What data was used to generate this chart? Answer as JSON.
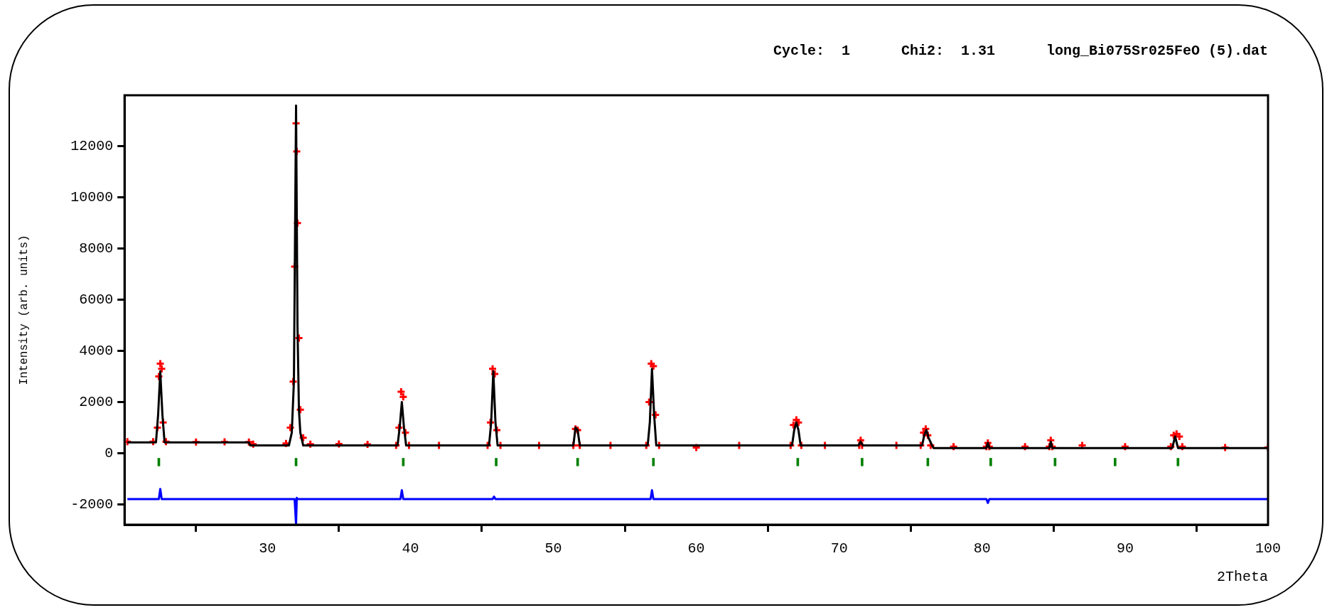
{
  "chart_data": {
    "type": "scatter",
    "title": "Cycle:  1      Chi2:  1.31      long_Bi075Sr025FeO (5).dat",
    "xlabel": "2Theta",
    "ylabel": "Intensity (arb. units)",
    "xlim": [
      20,
      100
    ],
    "xticks": [
      30,
      40,
      50,
      60,
      70,
      80,
      90,
      100
    ],
    "ylim": [
      -2800,
      14000
    ],
    "yticks": [
      -2000,
      0,
      2000,
      4000,
      6000,
      8000,
      10000,
      12000
    ],
    "grid": false,
    "legend": false,
    "series": [
      {
        "marker": "cross",
        "color": "#ff0000",
        "x": [
          20.2,
          22.0,
          22.3,
          22.4,
          22.5,
          22.6,
          22.7,
          22.9,
          25,
          27,
          28.7,
          29,
          31.3,
          31.6,
          31.8,
          31.9,
          32.0,
          32.05,
          32.1,
          32.2,
          32.3,
          32.5,
          33,
          35,
          37,
          39.0,
          39.2,
          39.35,
          39.5,
          39.65,
          39.9,
          42,
          45.4,
          45.6,
          45.75,
          45.9,
          46.05,
          46.3,
          49,
          51.4,
          51.55,
          51.7,
          51.85,
          54,
          56.5,
          56.7,
          56.85,
          57.0,
          57.15,
          57.4,
          60,
          63,
          66.6,
          66.8,
          67.0,
          67.15,
          67.35,
          69,
          71.4,
          71.5,
          71.6,
          74,
          75.7,
          75.9,
          76.05,
          76.2,
          76.4,
          78,
          80.3,
          80.4,
          80.5,
          83,
          84.7,
          84.8,
          84.9,
          87,
          90,
          93.2,
          93.4,
          93.6,
          93.8,
          94,
          97,
          100
        ],
        "values": [
          450,
          450,
          1000,
          3000,
          3500,
          3300,
          1200,
          450,
          430,
          440,
          430,
          350,
          380,
          1000,
          2800,
          7300,
          12900,
          11800,
          9000,
          4500,
          1700,
          600,
          350,
          360,
          340,
          300,
          1000,
          2400,
          2200,
          800,
          300,
          300,
          300,
          1200,
          3300,
          3100,
          900,
          300,
          300,
          300,
          950,
          900,
          300,
          300,
          300,
          2000,
          3500,
          3400,
          1500,
          300,
          220,
          300,
          300,
          1100,
          1300,
          1200,
          300,
          300,
          300,
          500,
          300,
          300,
          300,
          800,
          950,
          700,
          300,
          250,
          250,
          400,
          250,
          250,
          250,
          500,
          250,
          300,
          250,
          250,
          700,
          750,
          650,
          250,
          220,
          220
        ]
      },
      {
        "type": "line",
        "marker": "none",
        "color": "#000000",
        "x": [
          20.2,
          22.2,
          22.35,
          22.5,
          22.65,
          22.8,
          28.7,
          28.8,
          31.5,
          31.7,
          31.85,
          32.0,
          32.1,
          32.2,
          32.3,
          32.5,
          39.1,
          39.25,
          39.4,
          39.55,
          39.7,
          45.5,
          45.65,
          45.8,
          45.95,
          46.1,
          51.4,
          51.55,
          51.7,
          51.85,
          56.6,
          56.75,
          56.9,
          57.05,
          57.2,
          66.7,
          66.85,
          67.0,
          67.15,
          67.3,
          71.35,
          71.5,
          71.65,
          75.8,
          75.95,
          76.1,
          76.25,
          76.5,
          76.6,
          80.3,
          80.4,
          80.5,
          84.7,
          84.8,
          84.9,
          93.3,
          93.5,
          93.7,
          100
        ],
        "values": [
          420,
          420,
          1500,
          3200,
          1500,
          420,
          420,
          300,
          300,
          800,
          2800,
          13600,
          5000,
          1700,
          800,
          300,
          300,
          1000,
          2000,
          1000,
          300,
          300,
          1200,
          3200,
          1200,
          300,
          300,
          1000,
          900,
          300,
          300,
          1200,
          3300,
          1500,
          300,
          300,
          900,
          1200,
          900,
          300,
          300,
          450,
          300,
          300,
          700,
          900,
          600,
          300,
          200,
          200,
          400,
          200,
          200,
          450,
          200,
          200,
          650,
          200,
          200
        ]
      },
      {
        "type": "line",
        "marker": "none",
        "color": "#0000ff",
        "x": [
          20.2,
          22.4,
          22.5,
          22.6,
          31.9,
          32.0,
          32.05,
          32.1,
          39.3,
          39.4,
          39.5,
          45.75,
          45.85,
          45.95,
          56.8,
          56.9,
          57.0,
          80.3,
          80.4,
          80.5,
          100
        ],
        "values": [
          -1800,
          -1800,
          -1400,
          -1800,
          -1800,
          -2800,
          -1750,
          -1800,
          -1800,
          -1450,
          -1800,
          -1800,
          -1700,
          -1800,
          -1800,
          -1450,
          -1800,
          -1800,
          -1950,
          -1800,
          -1800
        ]
      },
      {
        "type": "bar",
        "color": "#008000",
        "x": [
          22.4,
          32.0,
          39.5,
          46.0,
          51.7,
          57.0,
          67.1,
          71.6,
          76.2,
          80.6,
          85.1,
          89.3,
          93.7
        ],
        "base": [
          -500,
          -500,
          -500,
          -500,
          -500,
          -500,
          -500,
          -500,
          -500,
          -500,
          -500,
          -500,
          -500
        ],
        "values": [
          300,
          300,
          300,
          300,
          300,
          300,
          300,
          300,
          300,
          300,
          300,
          300,
          300
        ]
      }
    ]
  }
}
